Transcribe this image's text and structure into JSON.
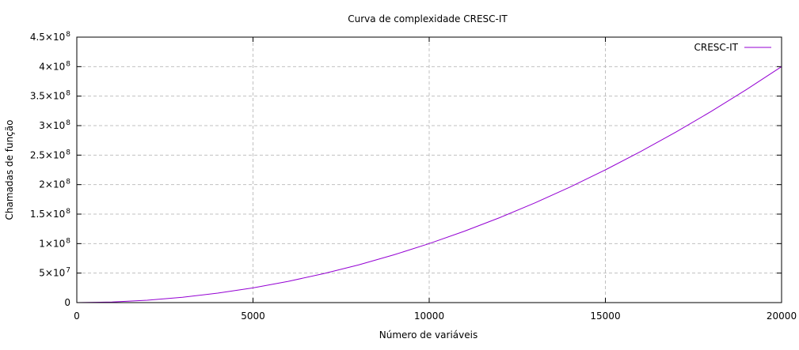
{
  "chart_data": {
    "type": "line",
    "title": "Curva de complexidade CRESC-IT",
    "xlabel": "Número de variáveis",
    "ylabel": "Chamadas de função",
    "xlim": [
      0,
      20000
    ],
    "ylim": [
      0,
      450000000
    ],
    "x_ticks": [
      {
        "value": 0,
        "label": "0"
      },
      {
        "value": 5000,
        "label": "5000"
      },
      {
        "value": 10000,
        "label": "10000"
      },
      {
        "value": 15000,
        "label": "15000"
      },
      {
        "value": 20000,
        "label": "20000"
      }
    ],
    "y_ticks": [
      {
        "value": 0,
        "mant": "0",
        "exp": ""
      },
      {
        "value": 50000000,
        "mant": "5×10",
        "exp": "7"
      },
      {
        "value": 100000000,
        "mant": "1×10",
        "exp": "8"
      },
      {
        "value": 150000000,
        "mant": "1.5×10",
        "exp": "8"
      },
      {
        "value": 200000000,
        "mant": "2×10",
        "exp": "8"
      },
      {
        "value": 250000000,
        "mant": "2.5×10",
        "exp": "8"
      },
      {
        "value": 300000000,
        "mant": "3×10",
        "exp": "8"
      },
      {
        "value": 350000000,
        "mant": "3.5×10",
        "exp": "8"
      },
      {
        "value": 400000000,
        "mant": "4×10",
        "exp": "8"
      },
      {
        "value": 450000000,
        "mant": "4.5×10",
        "exp": "8"
      }
    ],
    "grid": true,
    "legend_position": "top-right",
    "series": [
      {
        "name": "CRESC-IT",
        "color": "#9400d3",
        "x": [
          0,
          1000,
          2000,
          3000,
          4000,
          5000,
          6000,
          7000,
          8000,
          9000,
          10000,
          11000,
          12000,
          13000,
          14000,
          15000,
          16000,
          17000,
          18000,
          19000,
          20000
        ],
        "y": [
          0,
          1000000,
          4000000,
          9000000,
          16000000,
          25000000,
          36000000,
          49000000,
          64000000,
          81000000,
          100000000,
          121000000,
          144000000,
          169000000,
          196000000,
          225000000,
          256000000,
          289000000,
          324000000,
          361000000,
          400000000
        ]
      }
    ]
  }
}
